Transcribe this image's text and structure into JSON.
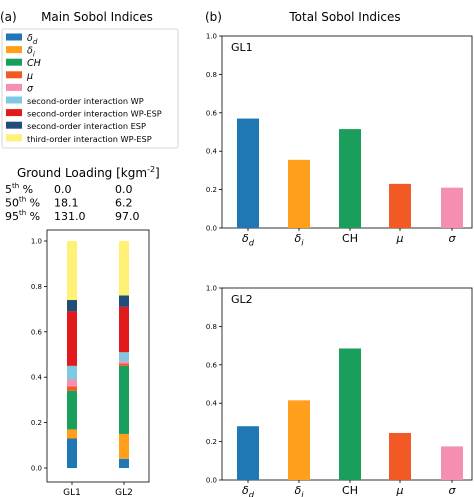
{
  "panel_a": {
    "label": "(a)",
    "title": "Main Sobol Indices",
    "legend": [
      {
        "label": "δd",
        "color": "#1f77b4"
      },
      {
        "label": "δi",
        "color": "#ff9f1c"
      },
      {
        "label": "CH",
        "color": "#1a9e5c"
      },
      {
        "label": "μ",
        "color": "#f15a24"
      },
      {
        "label": "σ",
        "color": "#f48fb1"
      },
      {
        "label": "second-order interaction WP",
        "color": "#7ec8e3"
      },
      {
        "label": "second-order interaction WP-ESP",
        "color": "#e31a1c"
      },
      {
        "label": "second-order interaction ESP",
        "color": "#1f4e79"
      },
      {
        "label": "third-order interaction WP-ESP",
        "color": "#fff176"
      }
    ],
    "loading_table": {
      "title": "Ground Loading [kgm",
      "title_sup": "-2",
      "title_end": "]",
      "rows": [
        {
          "pct": "5",
          "sup": "th",
          "unit": " %",
          "gl1": "0.0",
          "gl2": "0.0"
        },
        {
          "pct": "50",
          "sup": "th",
          "unit": " %",
          "gl1": "18.1",
          "gl2": "6.2"
        },
        {
          "pct": "95",
          "sup": "th",
          "unit": " %",
          "gl1": "131.0",
          "gl2": "97.0"
        }
      ]
    }
  },
  "panel_b": {
    "label": "(b)",
    "title": "Total Sobol Indices"
  },
  "chart_data": [
    {
      "type": "bar",
      "stacked": true,
      "categories": [
        "GL1",
        "GL2"
      ],
      "ylim": [
        0,
        1.0
      ],
      "yticks": [
        "0.0",
        "0.2",
        "0.4",
        "0.6",
        "0.8",
        "1.0"
      ],
      "series": [
        {
          "name": "δd",
          "color": "#1f77b4",
          "values": [
            0.13,
            0.04
          ]
        },
        {
          "name": "δi",
          "color": "#ff9f1c",
          "values": [
            0.04,
            0.11
          ]
        },
        {
          "name": "CH",
          "color": "#1a9e5c",
          "values": [
            0.17,
            0.3
          ]
        },
        {
          "name": "μ",
          "color": "#f15a24",
          "values": [
            0.02,
            0.01
          ]
        },
        {
          "name": "σ",
          "color": "#f48fb1",
          "values": [
            0.03,
            0.01
          ]
        },
        {
          "name": "second-order interaction WP",
          "color": "#7ec8e3",
          "values": [
            0.06,
            0.04
          ]
        },
        {
          "name": "second-order interaction WP-ESP",
          "color": "#e31a1c",
          "values": [
            0.24,
            0.2
          ]
        },
        {
          "name": "second-order interaction ESP",
          "color": "#1f4e79",
          "values": [
            0.05,
            0.05
          ]
        },
        {
          "name": "third-order interaction WP-ESP",
          "color": "#fff176",
          "values": [
            0.26,
            0.24
          ]
        }
      ]
    },
    {
      "type": "bar",
      "title": "GL1",
      "categories": [
        "δd",
        "δi",
        "CH",
        "μ",
        "σ"
      ],
      "values": [
        0.57,
        0.355,
        0.515,
        0.23,
        0.21
      ],
      "colors": [
        "#1f77b4",
        "#ff9f1c",
        "#1a9e5c",
        "#f15a24",
        "#f48fb1"
      ],
      "ylim": [
        0,
        1.0
      ],
      "yticks": [
        "0.0",
        "0.2",
        "0.4",
        "0.6",
        "0.8",
        "1.0"
      ]
    },
    {
      "type": "bar",
      "title": "GL2",
      "categories": [
        "δd",
        "δi",
        "CH",
        "μ",
        "σ"
      ],
      "values": [
        0.28,
        0.415,
        0.685,
        0.245,
        0.175
      ],
      "colors": [
        "#1f77b4",
        "#ff9f1c",
        "#1a9e5c",
        "#f15a24",
        "#f48fb1"
      ],
      "ylim": [
        0,
        1.0
      ],
      "yticks": [
        "0.0",
        "0.2",
        "0.4",
        "0.6",
        "0.8",
        "1.0"
      ]
    }
  ]
}
